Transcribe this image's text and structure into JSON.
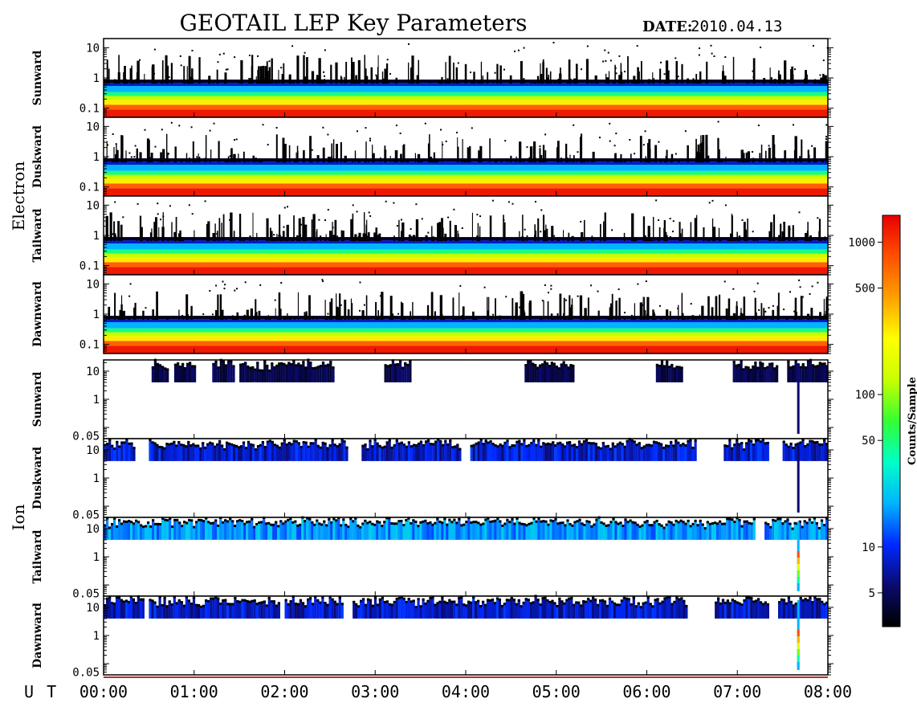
{
  "header": {
    "title": "GEOTAIL LEP Key Parameters",
    "date_label": "DATE:",
    "date_value": "2010.04.13"
  },
  "chart_data": {
    "type": "heatmap",
    "title": "GEOTAIL LEP Key Parameters",
    "date": "2010.04.13",
    "x_axis": {
      "label": "U T",
      "ticks": [
        "00:00",
        "01:00",
        "02:00",
        "03:00",
        "04:00",
        "05:00",
        "06:00",
        "07:00",
        "08:00"
      ],
      "range_hours": [
        0,
        8
      ]
    },
    "groups": [
      {
        "label": "Electron",
        "panels": [
          {
            "name": "Sunward",
            "y_scale": "log",
            "yticks": [
              "10",
              "1",
              "0.1"
            ],
            "ymin": 0.05,
            "ymax": 20
          },
          {
            "name": "Duskward",
            "y_scale": "log",
            "yticks": [
              "10",
              "1",
              "0.1"
            ],
            "ymin": 0.05,
            "ymax": 20
          },
          {
            "name": "Tailward",
            "y_scale": "log",
            "yticks": [
              "10",
              "1",
              "0.1"
            ],
            "ymin": 0.05,
            "ymax": 20
          },
          {
            "name": "Dawnward",
            "y_scale": "log",
            "yticks": [
              "10",
              "1",
              "0.1"
            ],
            "ymin": 0.05,
            "ymax": 20
          }
        ]
      },
      {
        "label": "Ion",
        "panels": [
          {
            "name": "Sunward",
            "y_scale": "log",
            "yticks": [
              "10",
              "1",
              "0.05"
            ],
            "ymin": 0.04,
            "ymax": 25
          },
          {
            "name": "Duskward",
            "y_scale": "log",
            "yticks": [
              "10",
              "1",
              "0.05"
            ],
            "ymin": 0.04,
            "ymax": 25
          },
          {
            "name": "Tailward",
            "y_scale": "log",
            "yticks": [
              "10",
              "1",
              "0.05"
            ],
            "ymin": 0.04,
            "ymax": 25
          },
          {
            "name": "Dawnward",
            "y_scale": "log",
            "yticks": [
              "10",
              "1",
              "0.05"
            ],
            "ymin": 0.04,
            "ymax": 25
          }
        ]
      }
    ],
    "colorbar": {
      "label": "Counts/Sample",
      "scale": "log",
      "range": [
        3,
        1500
      ],
      "ticks": [
        {
          "value": 1000,
          "label": "1000"
        },
        {
          "value": 500,
          "label": "500"
        },
        {
          "value": 100,
          "label": "100"
        },
        {
          "value": 50,
          "label": "50"
        },
        {
          "value": 10,
          "label": "10"
        },
        {
          "value": 5,
          "label": "5"
        }
      ],
      "colormap": [
        "#000000",
        "#0a0a6e",
        "#0028ff",
        "#00b4ff",
        "#00ffc8",
        "#32ff32",
        "#c8ff00",
        "#ffff00",
        "#ffa000",
        "#ff5000",
        "#e80000"
      ]
    },
    "ion_activity_segments": {
      "Sunward": [
        [
          0.53,
          0.72
        ],
        [
          0.78,
          1.02
        ],
        [
          1.2,
          1.45
        ],
        [
          1.5,
          2.3
        ],
        [
          2.3,
          2.55
        ],
        [
          3.1,
          3.4
        ],
        [
          4.65,
          5.2
        ],
        [
          6.1,
          6.4
        ],
        [
          6.95,
          7.45
        ],
        [
          7.55,
          7.85
        ],
        [
          7.85,
          8.0
        ]
      ],
      "Duskward": [
        [
          0.0,
          0.35
        ],
        [
          0.5,
          2.7
        ],
        [
          2.85,
          3.95
        ],
        [
          4.05,
          5.85
        ],
        [
          5.85,
          6.55
        ],
        [
          6.85,
          7.35
        ],
        [
          7.5,
          8.0
        ]
      ],
      "Tailward": [
        [
          0.0,
          6.55
        ],
        [
          6.55,
          7.2
        ],
        [
          7.3,
          8.0
        ]
      ],
      "Dawnward": [
        [
          0.0,
          0.45
        ],
        [
          0.5,
          1.95
        ],
        [
          2.0,
          2.65
        ],
        [
          2.75,
          4.6
        ],
        [
          4.6,
          6.45
        ],
        [
          6.75,
          7.35
        ],
        [
          7.45,
          8.0
        ]
      ]
    },
    "ion_spike": {
      "time_hours": 7.66,
      "panels": [
        "Sunward",
        "Duskward",
        "Tailward",
        "Dawnward"
      ]
    }
  }
}
